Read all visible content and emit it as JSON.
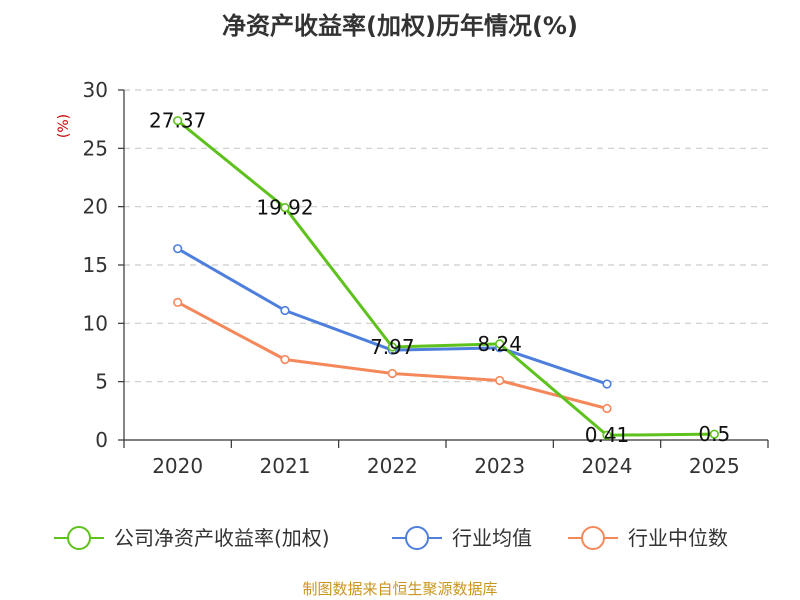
{
  "chart_data": {
    "type": "line",
    "title": "净资产收益率(加权)历年情况(%)",
    "ylabel": "(%)",
    "xlabel": "",
    "categories": [
      "2020",
      "2021",
      "2022",
      "2023",
      "2024",
      "2025"
    ],
    "y_ticks": [
      "0",
      "5",
      "10",
      "15",
      "20",
      "25",
      "30"
    ],
    "ylim": [
      0,
      30
    ],
    "grid": true,
    "legend_position": "bottom",
    "series": [
      {
        "name": "公司净资产收益率(加权)",
        "color": "#5ec21d",
        "values": [
          27.37,
          19.92,
          7.97,
          8.24,
          0.41,
          0.5
        ],
        "labels": [
          "27.37",
          "19.92",
          "7.97",
          "8.24",
          "0.41",
          "0.5"
        ],
        "show_labels": true
      },
      {
        "name": "行业均值",
        "color": "#4e7fdd",
        "values": [
          16.4,
          11.1,
          7.7,
          7.9,
          4.8,
          null
        ],
        "show_labels": false
      },
      {
        "name": "行业中位数",
        "color": "#f5885a",
        "values": [
          11.8,
          6.9,
          5.7,
          5.1,
          2.7,
          null
        ],
        "show_labels": false
      }
    ],
    "colors": {
      "unit_label": "#cc0000",
      "source": "#c9961e"
    },
    "source": "制图数据来自恒生聚源数据库"
  }
}
